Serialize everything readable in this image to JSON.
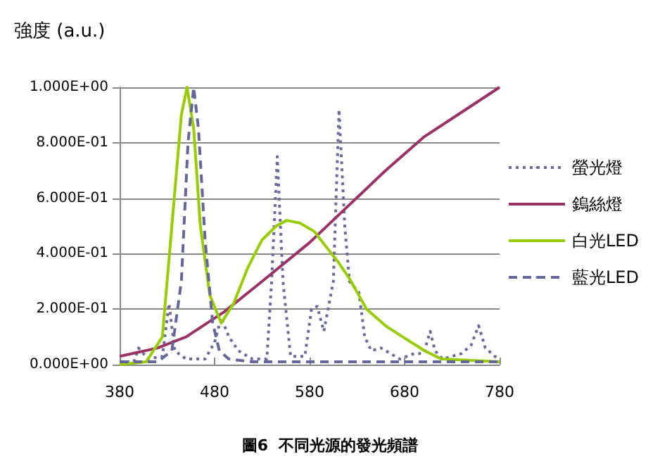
{
  "chart_data": {
    "type": "line",
    "ylabel": "強度 (a.u.)",
    "annotations": [
      "圖6  不同光源的發光頻譜"
    ],
    "xlim": [
      380,
      780
    ],
    "xticks": [
      380,
      480,
      580,
      680,
      780
    ],
    "ylim": [
      0,
      1
    ],
    "yticks": [
      {
        "value": 0,
        "label": "0.000E+00"
      },
      {
        "value": 0.2,
        "label": "2.000E-01"
      },
      {
        "value": 0.4,
        "label": "4.000E-01"
      },
      {
        "value": 0.6,
        "label": "6.000E-01"
      },
      {
        "value": 0.8,
        "label": "8.000E-01"
      },
      {
        "value": 1,
        "label": "1.000E+00"
      }
    ],
    "grid": "y",
    "legend": "right",
    "marker": "none",
    "series": [
      {
        "name": "螢光燈",
        "color": "#6b6b9a",
        "line_style": "dotted",
        "x": [
          380,
          395,
          400,
          410,
          425,
          432,
          438,
          450,
          470,
          480,
          487,
          495,
          505,
          520,
          535,
          540,
          546,
          552,
          560,
          575,
          582,
          588,
          595,
          605,
          611,
          617,
          622,
          632,
          638,
          645,
          655,
          665,
          675,
          690,
          700,
          707,
          712,
          720,
          740,
          750,
          758,
          765,
          775,
          780
        ],
        "values": [
          0.01,
          0.01,
          0.06,
          0.02,
          0.03,
          0.22,
          0.05,
          0.02,
          0.02,
          0.08,
          0.17,
          0.1,
          0.05,
          0.02,
          0.02,
          0.3,
          0.75,
          0.3,
          0.03,
          0.03,
          0.2,
          0.21,
          0.12,
          0.3,
          0.92,
          0.5,
          0.3,
          0.26,
          0.1,
          0.05,
          0.06,
          0.04,
          0.02,
          0.04,
          0.04,
          0.12,
          0.05,
          0.02,
          0.04,
          0.07,
          0.14,
          0.06,
          0.03,
          0.02
        ]
      },
      {
        "name": "鎢絲燈",
        "color": "#993366",
        "line_style": "solid",
        "x": [
          380,
          420,
          450,
          490,
          530,
          580,
          620,
          660,
          700,
          740,
          780
        ],
        "values": [
          0.03,
          0.06,
          0.1,
          0.19,
          0.3,
          0.44,
          0.57,
          0.7,
          0.82,
          0.91,
          1.0
        ]
      },
      {
        "name": "白光LED",
        "color": "#99cc00",
        "line_style": "solid",
        "x": [
          380,
          408,
          425,
          435,
          445,
          451,
          458,
          465,
          475,
          487,
          500,
          515,
          530,
          545,
          556,
          570,
          585,
          594,
          610,
          622,
          640,
          660,
          678,
          701,
          719,
          750,
          780
        ],
        "values": [
          0,
          0.01,
          0.1,
          0.5,
          0.9,
          1.0,
          0.85,
          0.5,
          0.25,
          0.15,
          0.22,
          0.35,
          0.45,
          0.5,
          0.52,
          0.51,
          0.48,
          0.44,
          0.37,
          0.31,
          0.2,
          0.14,
          0.1,
          0.05,
          0.02,
          0.015,
          0.01
        ]
      },
      {
        "name": "藍光LED",
        "color": "#666699",
        "line_style": "dashed",
        "x": [
          380,
          420,
          435,
          445,
          452,
          458,
          463,
          470,
          478,
          485,
          495,
          520,
          600,
          700,
          780
        ],
        "values": [
          0.01,
          0.01,
          0.05,
          0.3,
          0.8,
          1.0,
          0.85,
          0.45,
          0.15,
          0.05,
          0.02,
          0.01,
          0.01,
          0.01,
          0.01
        ]
      }
    ]
  }
}
